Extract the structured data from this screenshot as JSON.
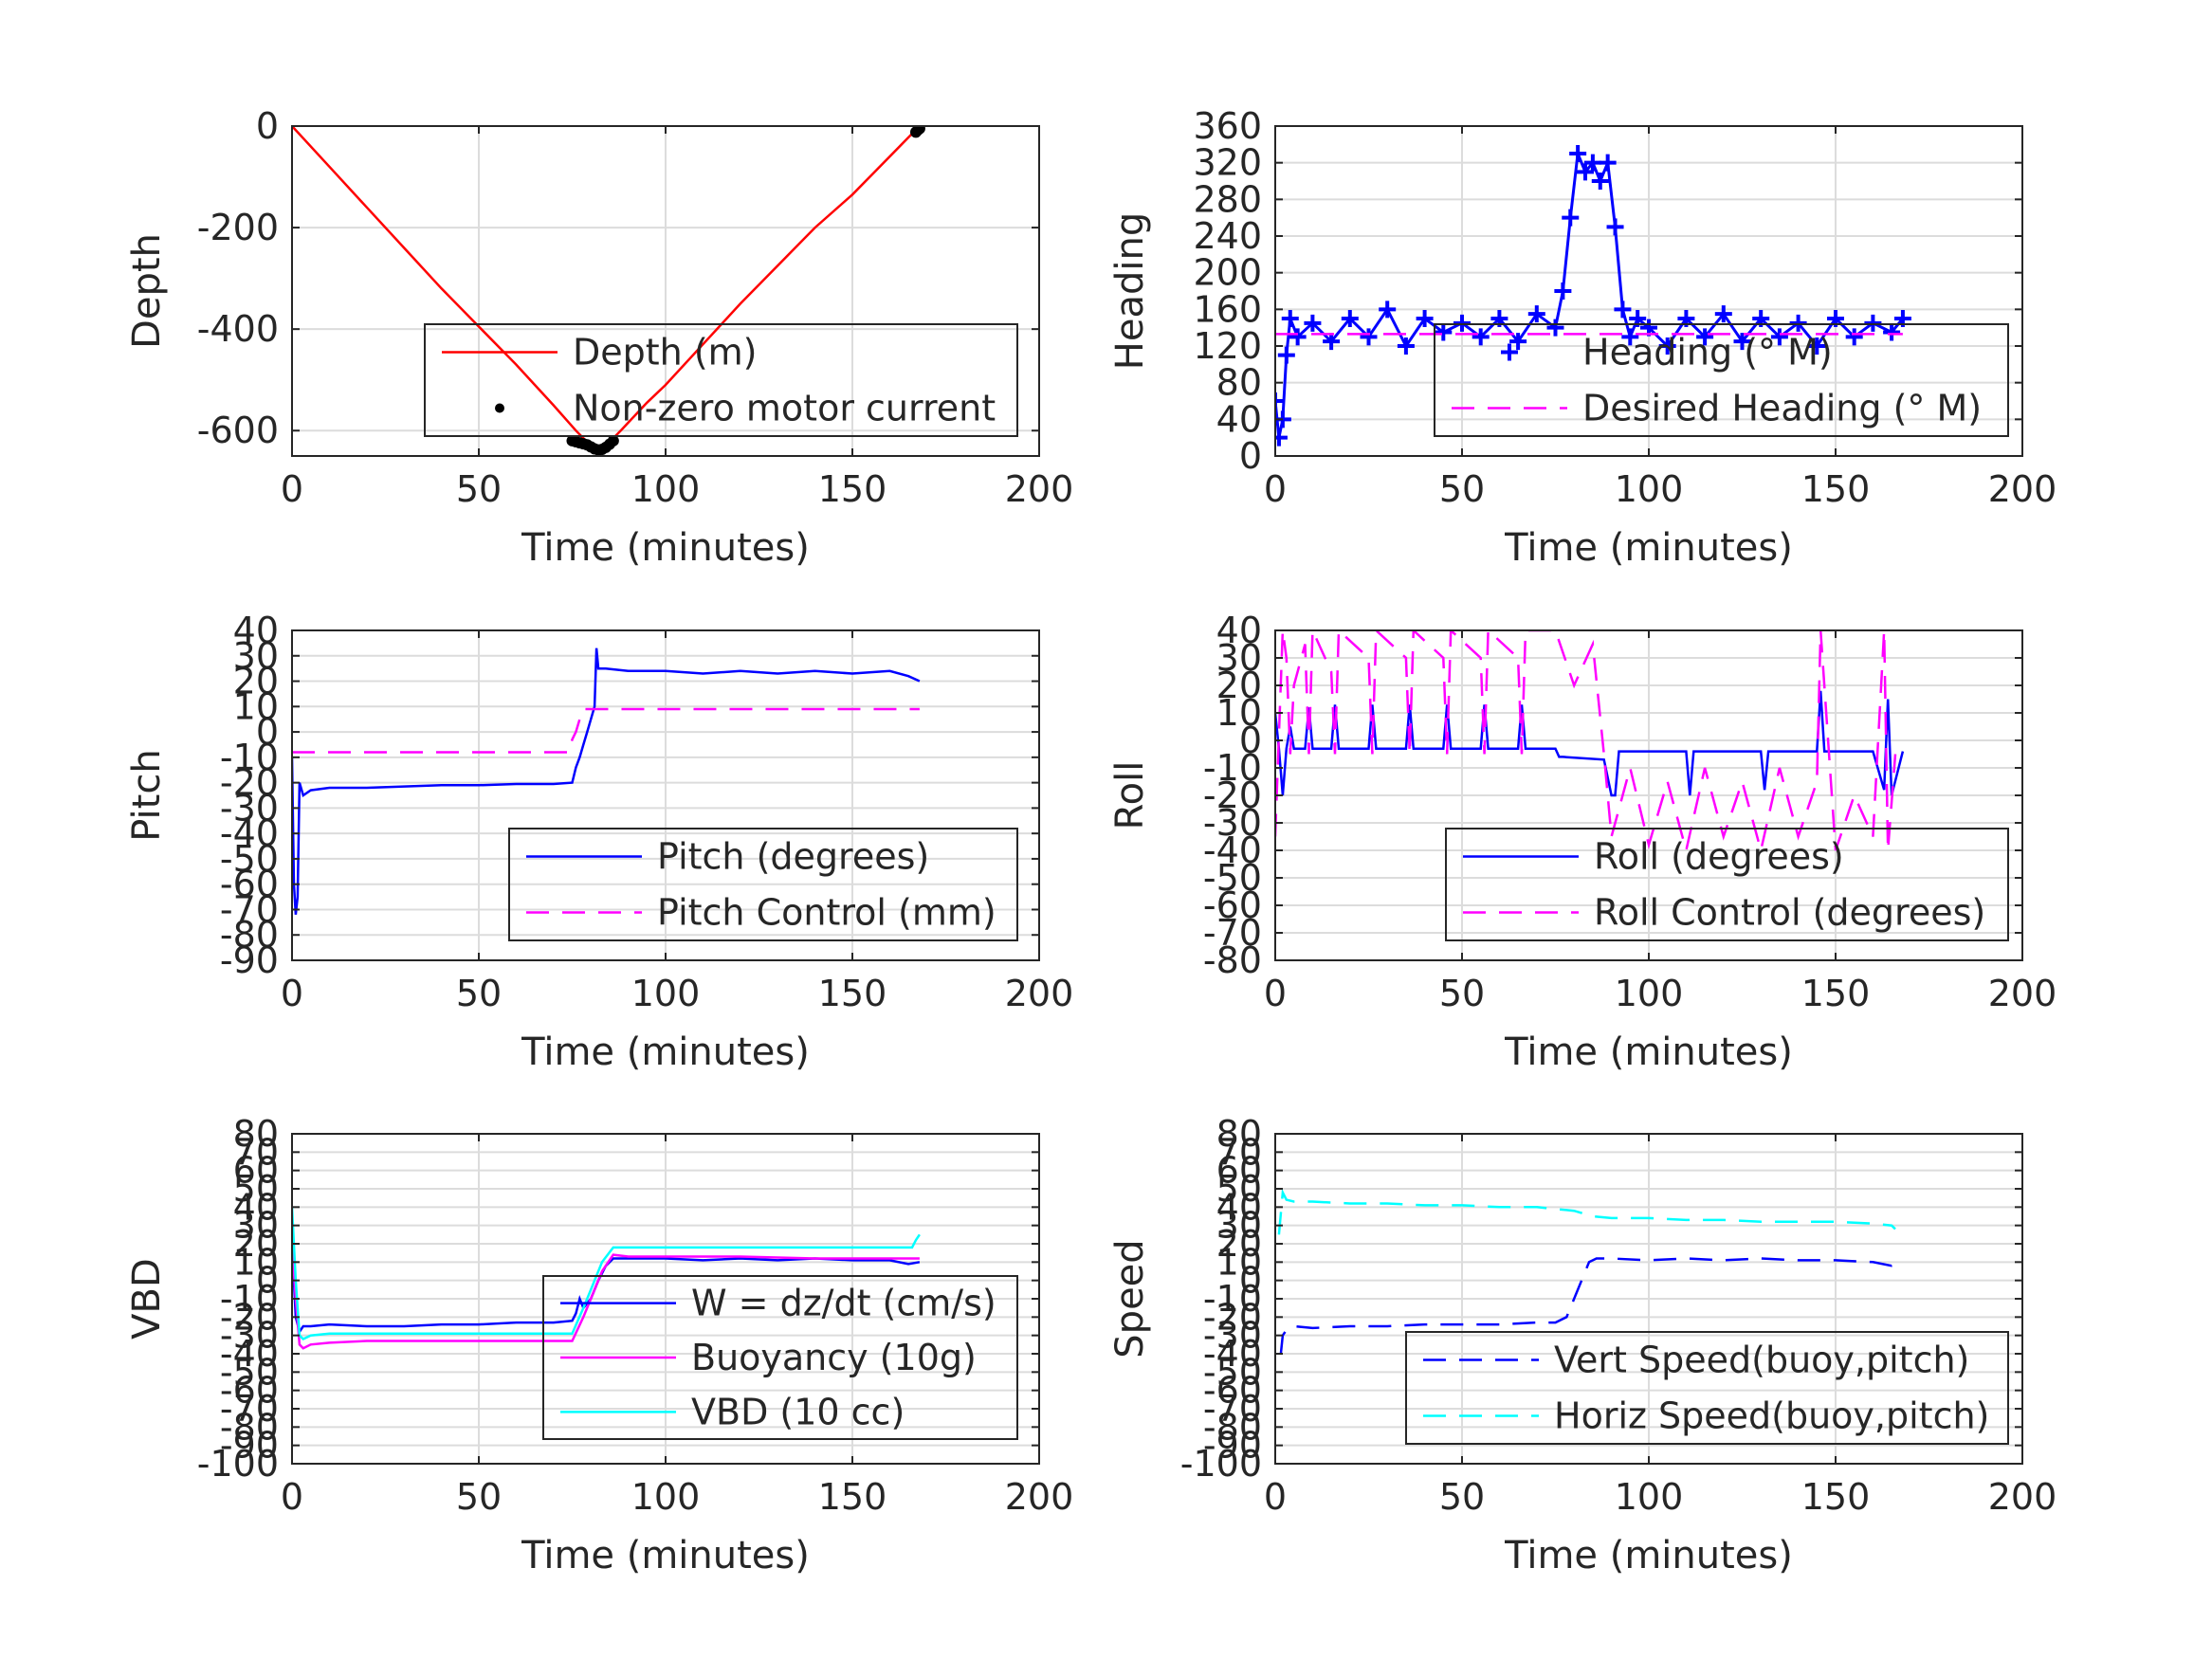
{
  "chart_data": [
    {
      "id": "depth",
      "type": "line",
      "ylabel": "Depth",
      "xlabel": "Time (minutes)",
      "xlim": [
        0,
        200
      ],
      "ylim": [
        -650,
        0
      ],
      "xticks": [
        0,
        50,
        100,
        150,
        200
      ],
      "yticks": [
        0,
        -200,
        -400,
        -600
      ],
      "grid": true,
      "legend_position": "bottom-right",
      "series": [
        {
          "name": "Depth (m)",
          "style": "line",
          "color": "#ff0000",
          "x": [
            0,
            10,
            20,
            30,
            40,
            50,
            60,
            70,
            76,
            80,
            84,
            88,
            95,
            100,
            110,
            120,
            130,
            140,
            150,
            160,
            166,
            168
          ],
          "y": [
            0,
            -80,
            -160,
            -240,
            -320,
            -395,
            -470,
            -550,
            -600,
            -630,
            -630,
            -600,
            -545,
            -510,
            -430,
            -350,
            -275,
            -200,
            -135,
            -60,
            -15,
            -5
          ]
        },
        {
          "name": "Non-zero motor current",
          "style": "dots",
          "color": "#000000",
          "x": [
            75,
            76,
            77,
            78,
            79,
            80,
            81,
            82,
            83,
            84,
            85,
            86,
            167,
            167.5,
            168
          ],
          "y": [
            -620,
            -622,
            -624,
            -626,
            -628,
            -632,
            -636,
            -638,
            -637,
            -633,
            -627,
            -620,
            -12,
            -8,
            -5
          ]
        }
      ]
    },
    {
      "id": "heading",
      "type": "line",
      "ylabel": "Heading",
      "xlabel": "Time (minutes)",
      "xlim": [
        0,
        200
      ],
      "ylim": [
        0,
        360
      ],
      "xticks": [
        0,
        50,
        100,
        150,
        200
      ],
      "yticks": [
        0,
        40,
        80,
        120,
        160,
        200,
        240,
        280,
        320,
        360
      ],
      "grid": true,
      "legend_position": "bottom-right",
      "series": [
        {
          "name": "Heading (° M)",
          "style": "plus",
          "color": "#0000ff",
          "x": [
            0,
            1,
            2,
            3,
            4,
            6,
            10,
            15,
            20,
            25,
            30,
            35,
            40,
            45,
            50,
            55,
            60,
            65,
            70,
            75,
            77,
            79,
            81,
            83,
            85,
            87,
            89,
            91,
            93,
            95,
            97,
            100,
            105,
            110,
            115,
            120,
            125,
            130,
            135,
            140,
            145,
            150,
            155,
            160,
            165,
            168
          ],
          "y": [
            60,
            20,
            40,
            110,
            150,
            130,
            145,
            125,
            150,
            130,
            160,
            120,
            150,
            135,
            145,
            130,
            150,
            125,
            155,
            140,
            180,
            260,
            330,
            310,
            320,
            300,
            320,
            250,
            160,
            130,
            150,
            140,
            120,
            150,
            130,
            155,
            125,
            150,
            130,
            145,
            120,
            150,
            130,
            145,
            135,
            150
          ]
        },
        {
          "name": "Desired Heading (° M)",
          "style": "dashed",
          "color": "#ff00ff",
          "x": [
            0,
            168
          ],
          "y": [
            133,
            133
          ]
        }
      ]
    },
    {
      "id": "pitch",
      "type": "line",
      "ylabel": "Pitch",
      "xlabel": "Time (minutes)",
      "xlim": [
        0,
        200
      ],
      "ylim": [
        -90,
        40
      ],
      "xticks": [
        0,
        50,
        100,
        150,
        200
      ],
      "yticks": [
        40,
        30,
        20,
        10,
        0,
        -10,
        -20,
        -30,
        -40,
        -50,
        -60,
        -70,
        -80,
        -90
      ],
      "grid": true,
      "legend_position": "bottom-right",
      "series": [
        {
          "name": "Pitch (degrees)",
          "style": "line",
          "color": "#0000ff",
          "x": [
            0,
            0.5,
            1,
            1.5,
            2,
            3,
            5,
            10,
            20,
            30,
            40,
            50,
            60,
            70,
            75,
            76,
            77,
            78,
            79,
            80,
            81,
            81.5,
            82,
            84,
            90,
            100,
            110,
            120,
            130,
            140,
            150,
            160,
            165,
            168
          ],
          "y": [
            -10,
            -60,
            -72,
            -65,
            -20,
            -25,
            -23,
            -22,
            -22,
            -21.5,
            -21,
            -21,
            -20.5,
            -20.5,
            -20,
            -14,
            -10,
            -5,
            0,
            5,
            10,
            33,
            25,
            25,
            24,
            24,
            23,
            24,
            23,
            24,
            23,
            24,
            22,
            20
          ]
        },
        {
          "name": "Pitch Control (mm)",
          "style": "dashed",
          "color": "#ff00ff",
          "x": [
            0,
            73,
            74,
            75,
            76,
            77,
            78,
            79,
            168
          ],
          "y": [
            -8,
            -8,
            -8,
            -3,
            0,
            5,
            9,
            9,
            9
          ]
        }
      ]
    },
    {
      "id": "roll",
      "type": "line",
      "ylabel": "Roll",
      "xlabel": "Time (minutes)",
      "xlim": [
        0,
        200
      ],
      "ylim": [
        -80,
        40
      ],
      "xticks": [
        0,
        50,
        100,
        150,
        200
      ],
      "yticks": [
        40,
        30,
        20,
        10,
        0,
        -10,
        -20,
        -30,
        -40,
        -50,
        -60,
        -70,
        -80
      ],
      "grid": true,
      "legend_position": "bottom-right",
      "series": [
        {
          "name": "Roll (degrees)",
          "style": "line",
          "color": "#0000ff",
          "x": [
            0,
            1,
            2,
            3,
            4,
            5,
            8,
            9,
            10,
            15,
            16,
            17,
            25,
            26,
            27,
            35,
            36,
            37,
            45,
            46,
            47,
            55,
            56,
            57,
            65,
            66,
            67,
            75,
            76,
            77,
            88,
            90,
            91,
            92,
            93,
            100,
            110,
            111,
            112,
            120,
            130,
            131,
            132,
            140,
            145,
            146,
            147,
            150,
            160,
            163,
            164,
            165,
            168
          ],
          "y": [
            10,
            -3,
            -20,
            -3,
            5,
            -3,
            -3,
            12,
            -3,
            -3,
            13,
            -3,
            -3,
            13,
            -3,
            -3,
            13,
            -3,
            -3,
            13,
            -3,
            -3,
            13,
            -3,
            -3,
            13,
            -3,
            -3,
            -6,
            -6,
            -7,
            -20,
            -20,
            -4,
            -4,
            -4,
            -4,
            -20,
            -4,
            -4,
            -4,
            -18,
            -4,
            -4,
            -4,
            18,
            -4,
            -4,
            -4,
            -18,
            15,
            -20,
            -4
          ]
        },
        {
          "name": "Roll Control (degrees)",
          "style": "dashed",
          "color": "#ff00ff",
          "x": [
            0,
            2,
            3,
            4,
            5,
            8,
            9,
            10,
            15,
            16,
            17,
            25,
            26,
            27,
            35,
            36,
            37,
            45,
            46,
            47,
            55,
            56,
            57,
            65,
            66,
            67,
            75,
            80,
            85,
            88,
            90,
            95,
            100,
            105,
            110,
            115,
            120,
            125,
            130,
            135,
            140,
            145,
            146,
            150,
            155,
            160,
            163,
            164,
            166
          ],
          "y": [
            -35,
            40,
            30,
            -5,
            20,
            35,
            -5,
            40,
            25,
            -5,
            40,
            30,
            -5,
            40,
            30,
            -5,
            40,
            30,
            -5,
            40,
            30,
            -5,
            40,
            30,
            -5,
            40,
            40,
            20,
            35,
            -5,
            -35,
            -10,
            -38,
            -15,
            -40,
            -10,
            -35,
            -15,
            -40,
            -10,
            -35,
            -15,
            40,
            -40,
            -20,
            -35,
            40,
            -40,
            -5
          ]
        }
      ]
    },
    {
      "id": "vbd",
      "type": "line",
      "ylabel": "VBD",
      "xlabel": "Time (minutes)",
      "xlim": [
        0,
        200
      ],
      "ylim": [
        -100,
        80
      ],
      "xticks": [
        0,
        50,
        100,
        150,
        200
      ],
      "yticks": [
        80,
        70,
        60,
        50,
        40,
        30,
        20,
        10,
        0,
        -10,
        -20,
        -30,
        -40,
        -50,
        -60,
        -70,
        -80,
        -90,
        -100
      ],
      "grid": true,
      "legend_position": "bottom-right",
      "series": [
        {
          "name": "W = dz/dt (cm/s)",
          "style": "line",
          "color": "#0000ff",
          "x": [
            0,
            1,
            2,
            3,
            5,
            10,
            20,
            30,
            40,
            50,
            60,
            70,
            75,
            76,
            77,
            78,
            80,
            82,
            84,
            86,
            90,
            100,
            110,
            120,
            130,
            140,
            150,
            160,
            165,
            168
          ],
          "y": [
            20,
            -20,
            -28,
            -25,
            -25,
            -24,
            -25,
            -25,
            -24,
            -24,
            -23,
            -23,
            -22,
            -18,
            -10,
            -15,
            -10,
            0,
            8,
            12,
            12,
            12,
            11,
            12,
            11,
            12,
            11,
            11,
            9,
            10
          ]
        },
        {
          "name": "Buoyancy (10g)",
          "style": "line",
          "color": "#ff00ff",
          "x": [
            0,
            1,
            2,
            3,
            5,
            10,
            20,
            40,
            60,
            75,
            78,
            80,
            83,
            86,
            90,
            100,
            120,
            140,
            160,
            165,
            168
          ],
          "y": [
            20,
            -10,
            -35,
            -37,
            -35,
            -34,
            -33,
            -33,
            -33,
            -33,
            -20,
            -10,
            5,
            14,
            13,
            13,
            13,
            12,
            12,
            12,
            12
          ]
        },
        {
          "name": "VBD (10 cc)",
          "style": "line",
          "color": "#00ffff",
          "x": [
            0,
            1,
            2,
            3,
            5,
            10,
            20,
            40,
            60,
            75,
            78,
            80,
            83,
            86,
            90,
            100,
            120,
            140,
            160,
            166,
            167,
            168
          ],
          "y": [
            40,
            0,
            -30,
            -32,
            -30,
            -29,
            -29,
            -29,
            -29,
            -29,
            -15,
            -5,
            10,
            18,
            18,
            18,
            18,
            18,
            18,
            18,
            22,
            25
          ]
        }
      ]
    },
    {
      "id": "speed",
      "type": "line",
      "ylabel": "Speed",
      "xlabel": "Time (minutes)",
      "xlim": [
        0,
        200
      ],
      "ylim": [
        -100,
        80
      ],
      "xticks": [
        0,
        50,
        100,
        150,
        200
      ],
      "yticks": [
        80,
        70,
        60,
        50,
        40,
        30,
        20,
        10,
        0,
        -10,
        -20,
        -30,
        -40,
        -50,
        -60,
        -70,
        -80,
        -90,
        -100
      ],
      "grid": true,
      "legend_position": "bottom-right",
      "series": [
        {
          "name": "Vert Speed(buoy,pitch)",
          "style": "dashed",
          "color": "#0000ff",
          "x": [
            1.5,
            2,
            3,
            5,
            10,
            20,
            30,
            40,
            50,
            60,
            70,
            75,
            78,
            80,
            82,
            84,
            86,
            90,
            100,
            110,
            120,
            130,
            140,
            150,
            160,
            165,
            168
          ],
          "y": [
            -40,
            -30,
            -27,
            -25,
            -26,
            -25,
            -25,
            -24,
            -24,
            -24,
            -23,
            -23,
            -20,
            -10,
            0,
            10,
            12,
            12,
            11,
            12,
            11,
            12,
            11,
            11,
            10,
            8,
            10
          ]
        },
        {
          "name": "Horiz Speed(buoy,pitch)",
          "style": "dashed",
          "color": "#00ffff",
          "x": [
            1,
            2,
            3,
            5,
            10,
            20,
            30,
            40,
            50,
            60,
            70,
            80,
            85,
            90,
            100,
            110,
            120,
            130,
            140,
            150,
            160,
            165,
            166
          ],
          "y": [
            25,
            48,
            44,
            43,
            43,
            42,
            42,
            41,
            41,
            40,
            40,
            38,
            35,
            34,
            34,
            33,
            33,
            32,
            32,
            32,
            31,
            30,
            28
          ]
        }
      ]
    }
  ]
}
